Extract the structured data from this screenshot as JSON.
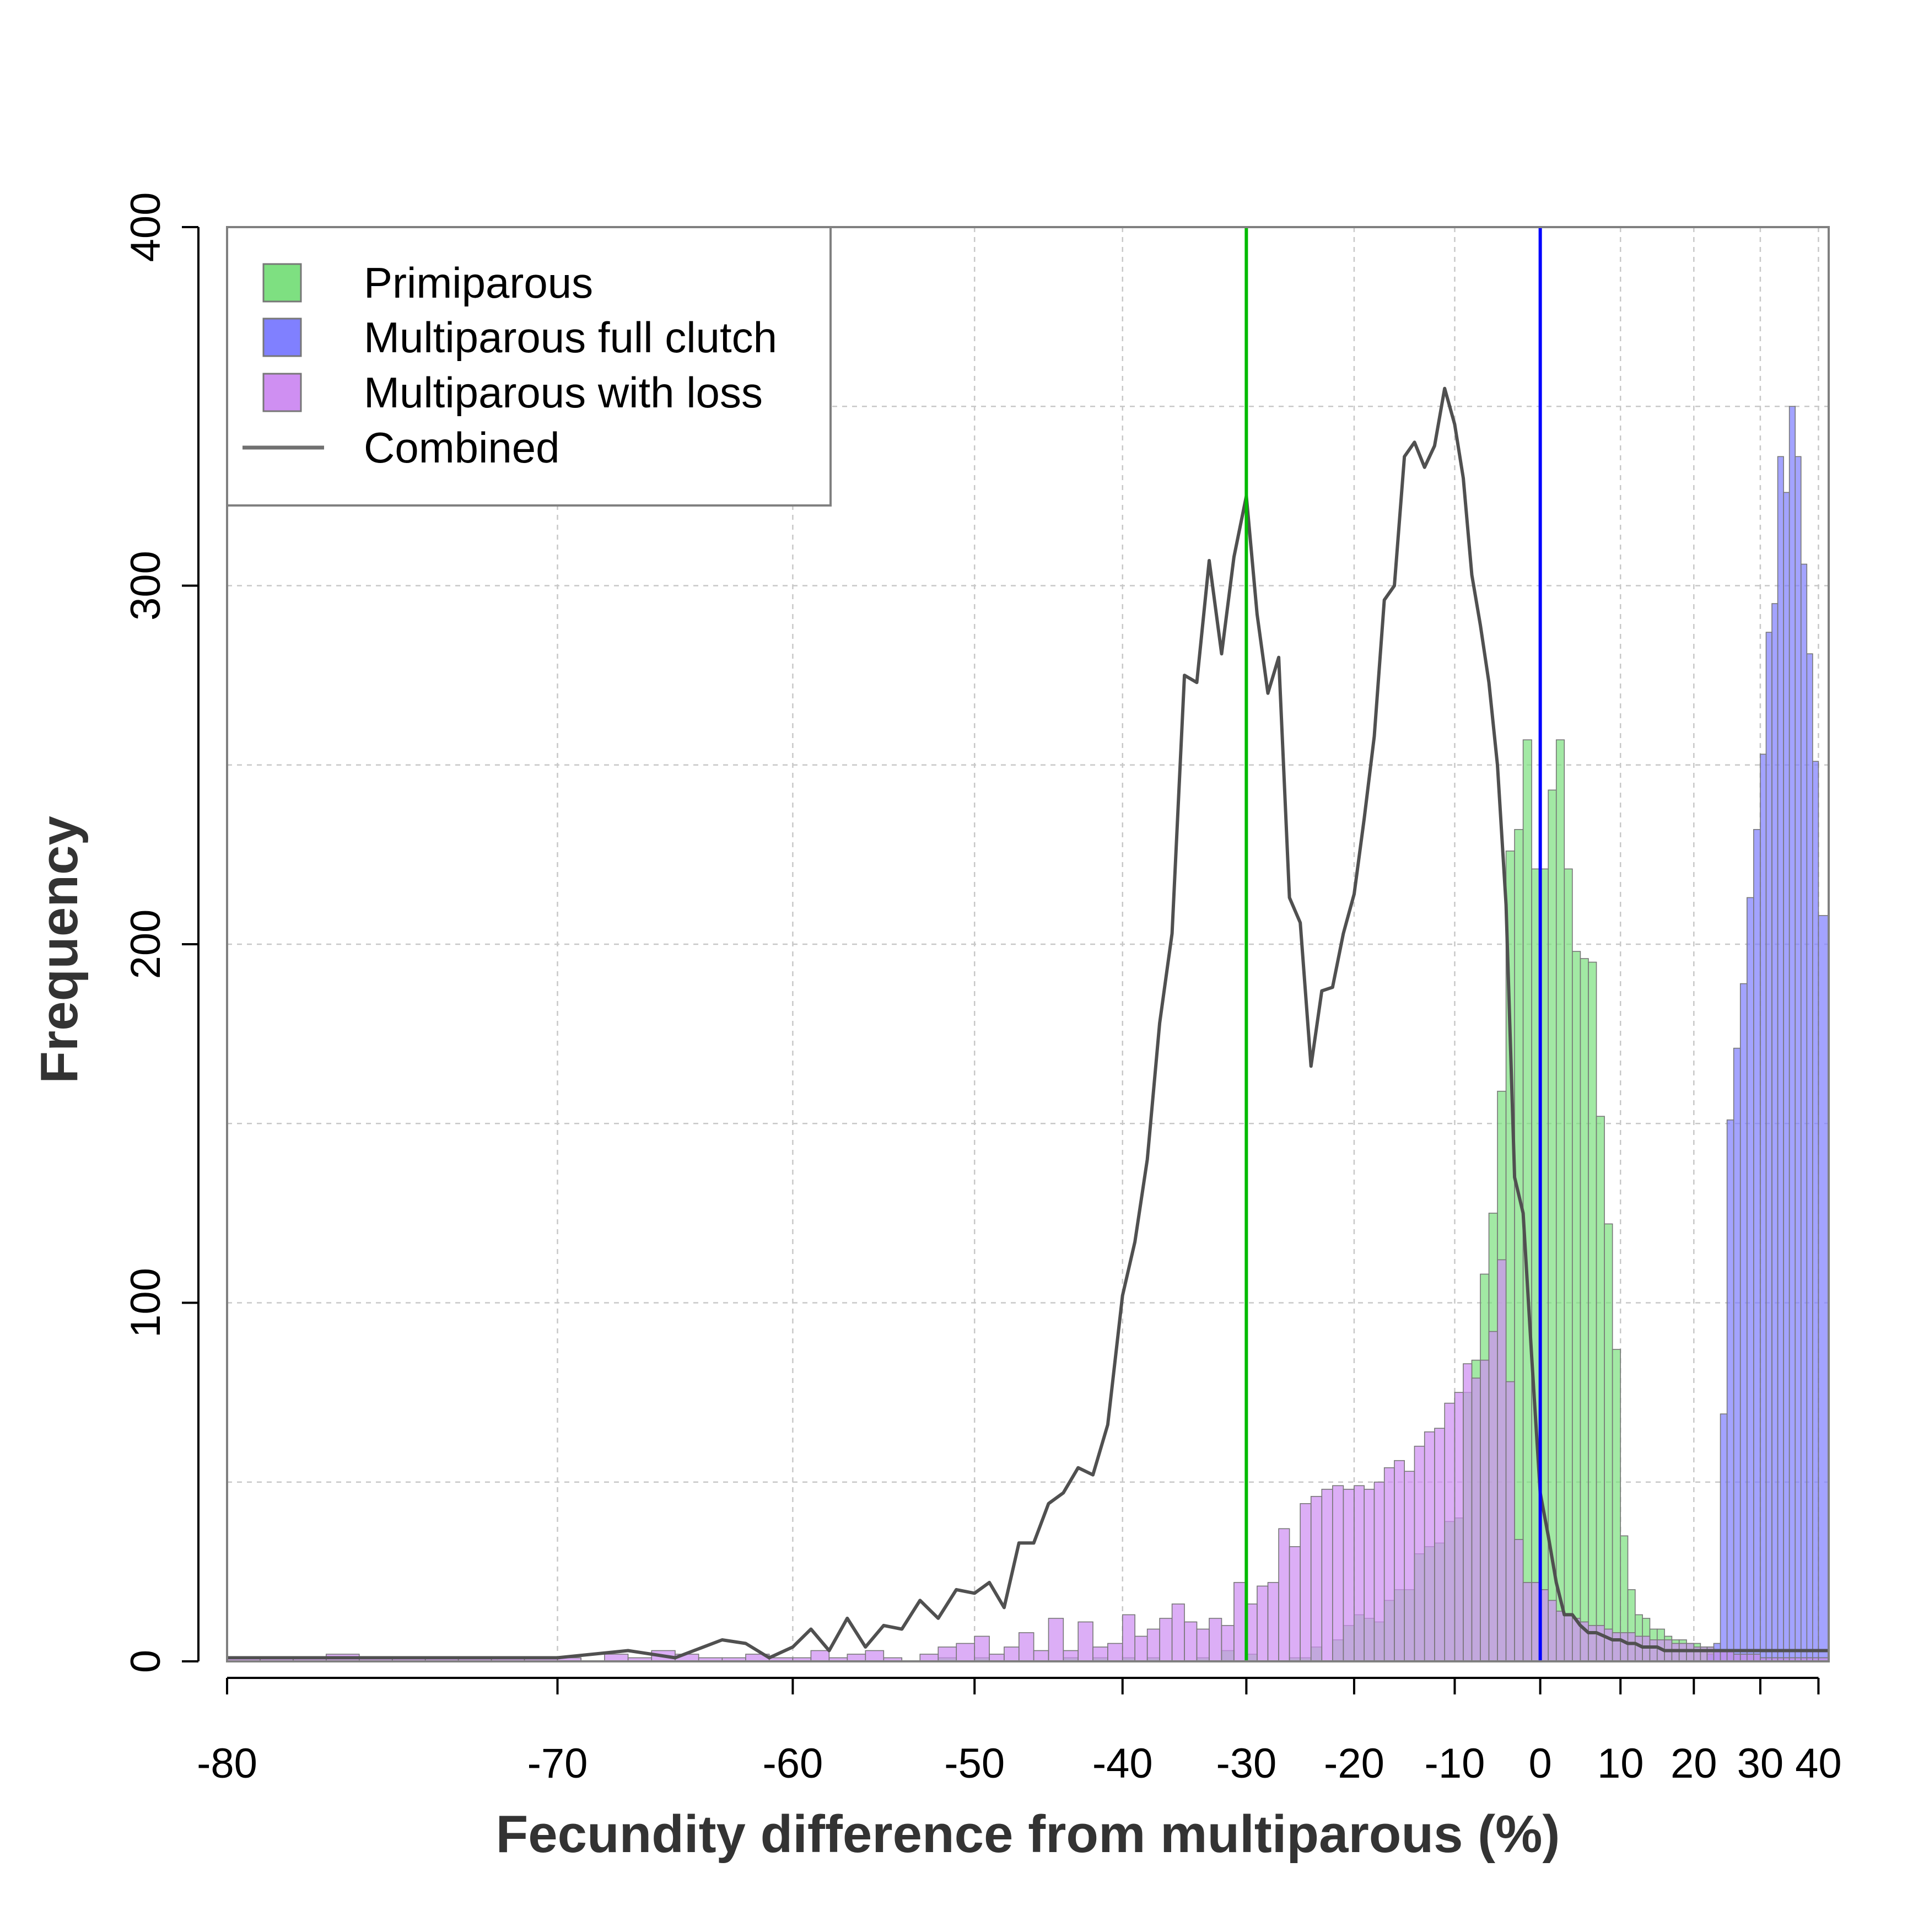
{
  "chart_data": {
    "type": "bar",
    "xlabel": "Fecundity difference from multiparous (%)",
    "ylabel": "Frequency",
    "xlim": [
      -80,
      41
    ],
    "ylim": [
      0,
      400
    ],
    "x_ticks": [
      -80,
      -70,
      -60,
      -50,
      -40,
      -30,
      -20,
      -10,
      0,
      10,
      20,
      30,
      40
    ],
    "y_ticks": [
      0,
      100,
      200,
      300,
      400
    ],
    "grid": true,
    "x_scale": "nonlinear",
    "x_axis_mapping": [
      [
        -80,
        0
      ],
      [
        -70,
        0.2063
      ],
      [
        -60,
        0.3532
      ],
      [
        -50,
        0.4667
      ],
      [
        -40,
        0.5591
      ],
      [
        -30,
        0.6364
      ],
      [
        -20,
        0.7037
      ],
      [
        -10,
        0.7665
      ],
      [
        0,
        0.8199
      ],
      [
        10,
        0.87
      ],
      [
        20,
        0.9158
      ],
      [
        30,
        0.9573
      ],
      [
        40,
        0.9936
      ],
      [
        41,
        1
      ]
    ],
    "legend": {
      "position": "top-left",
      "entries": [
        {
          "label": "Primiparous",
          "type": "box",
          "color": "#7ee081"
        },
        {
          "label": "Multiparous full clutch",
          "type": "box",
          "color": "#8080ff"
        },
        {
          "label": "Multiparous with loss",
          "type": "box",
          "color": "#cf8ff2"
        },
        {
          "label": "Combined",
          "type": "line",
          "color": "#707070"
        }
      ]
    },
    "vlines": [
      {
        "x": -30,
        "color": "#00bb00"
      },
      {
        "x": 0,
        "color": "#0000ff"
      }
    ],
    "bin_edges": [
      -80,
      -79,
      -78,
      -77,
      -76,
      -75,
      -74,
      -73,
      -72,
      -71,
      -70,
      -69,
      -68,
      -67,
      -66,
      -65,
      -64,
      -63,
      -62,
      -61,
      -60,
      -59,
      -58,
      -57,
      -56,
      -55,
      -54,
      -53,
      -52,
      -51,
      -50,
      -49,
      -48,
      -47,
      -46,
      -45,
      -44,
      -43,
      -42,
      -41,
      -40,
      -39,
      -38,
      -37,
      -36,
      -35,
      -34,
      -33,
      -32,
      -31,
      -30,
      -29,
      -28,
      -27,
      -26,
      -25,
      -24,
      -23,
      -22,
      -21,
      -20,
      -19,
      -18,
      -17,
      -16,
      -15,
      -14,
      -13,
      -12,
      -11,
      -10,
      -9,
      -8,
      -7,
      -6,
      -5,
      -4,
      -3,
      -2,
      -1,
      0,
      1,
      2,
      3,
      4,
      5,
      6,
      7,
      8,
      9,
      10,
      11,
      12,
      13,
      14,
      15,
      16,
      17,
      18,
      19,
      20,
      21,
      22,
      23,
      24,
      25,
      26,
      27,
      28,
      29,
      30,
      31,
      32,
      33,
      34,
      35,
      36,
      37,
      38,
      39,
      40,
      41
    ],
    "series": [
      {
        "name": "Primiparous",
        "color": "#7ee081",
        "values": [
          0,
          0,
          0,
          0,
          0,
          0,
          0,
          0,
          0,
          0,
          0,
          0,
          0,
          0,
          0,
          0,
          0,
          0,
          0,
          0,
          0,
          0,
          0,
          0,
          0,
          0,
          0,
          0,
          1,
          0,
          1,
          0,
          0,
          0,
          0,
          0,
          1,
          0,
          1,
          0,
          1,
          0,
          1,
          0,
          0,
          0,
          1,
          0,
          3,
          0,
          2,
          0,
          0,
          0,
          1,
          1,
          4,
          0,
          6,
          10,
          13,
          12,
          11,
          17,
          20,
          20,
          30,
          32,
          33,
          39,
          40,
          75,
          84,
          108,
          125,
          159,
          226,
          232,
          257,
          221,
          221,
          243,
          257,
          221,
          198,
          196,
          195,
          152,
          122,
          87,
          35,
          20,
          13,
          12,
          9,
          9,
          7,
          6,
          6,
          5,
          5,
          4,
          4,
          3,
          3,
          3,
          2,
          2,
          2,
          2,
          1,
          1,
          1,
          1,
          1,
          1,
          1,
          1,
          1,
          1,
          1
        ]
      },
      {
        "name": "Multiparous full clutch",
        "color": "#8080ff",
        "values": [
          0,
          0,
          0,
          0,
          0,
          0,
          0,
          0,
          0,
          0,
          0,
          0,
          0,
          0,
          0,
          0,
          0,
          0,
          0,
          0,
          0,
          0,
          0,
          0,
          0,
          0,
          0,
          0,
          0,
          0,
          0,
          0,
          0,
          0,
          0,
          0,
          0,
          0,
          0,
          0,
          0,
          0,
          0,
          0,
          0,
          0,
          0,
          0,
          0,
          0,
          0,
          0,
          0,
          0,
          0,
          0,
          0,
          0,
          0,
          0,
          0,
          0,
          0,
          0,
          0,
          0,
          0,
          0,
          0,
          0,
          0,
          0,
          0,
          0,
          0,
          0,
          0,
          0,
          0,
          0,
          0,
          0,
          0,
          0,
          0,
          0,
          0,
          0,
          0,
          0,
          0,
          0,
          0,
          0,
          0,
          0,
          0,
          0,
          0,
          0,
          0,
          0,
          2,
          5,
          69,
          151,
          171,
          189,
          213,
          232,
          253,
          287,
          295,
          336,
          326,
          350,
          336,
          306,
          281,
          251,
          208
        ]
      },
      {
        "name": "Multiparous with loss",
        "color": "#cf8ff2",
        "values": [
          1,
          1,
          1,
          2,
          1,
          1,
          1,
          1,
          1,
          1,
          1,
          0,
          2,
          1,
          3,
          2,
          1,
          1,
          2,
          1,
          1,
          3,
          1,
          2,
          3,
          1,
          0,
          2,
          4,
          5,
          7,
          2,
          4,
          8,
          3,
          12,
          3,
          11,
          4,
          5,
          13,
          7,
          9,
          12,
          16,
          11,
          9,
          12,
          10,
          22,
          16,
          21,
          22,
          37,
          32,
          44,
          46,
          48,
          49,
          48,
          49,
          48,
          50,
          54,
          56,
          53,
          60,
          64,
          65,
          72,
          75,
          83,
          79,
          84,
          92,
          112,
          78,
          34,
          22,
          22,
          20,
          17,
          14,
          13,
          12,
          11,
          10,
          10,
          9,
          8,
          8,
          8,
          7,
          7,
          6,
          6,
          6,
          5,
          5,
          5,
          4,
          4,
          4,
          3,
          3,
          3,
          2,
          2,
          2,
          2,
          1,
          1,
          1,
          1,
          1,
          1,
          1,
          1,
          1,
          1,
          1
        ]
      }
    ],
    "combined_line": {
      "name": "Combined",
      "color": "#505050",
      "x": [
        -80,
        -75,
        -70,
        -67,
        -65,
        -63,
        -62,
        -61,
        -60,
        -59,
        -58,
        -57,
        -56,
        -55,
        -54,
        -53,
        -52,
        -51,
        -50,
        -49,
        -48,
        -47,
        -46,
        -45,
        -44,
        -43,
        -42,
        -41,
        -40,
        -39,
        -38,
        -37,
        -36,
        -35,
        -34,
        -33,
        -32,
        -31,
        -30,
        -29,
        -28,
        -27,
        -26,
        -25,
        -24,
        -23,
        -22,
        -21,
        -20,
        -19,
        -18,
        -17,
        -16,
        -15,
        -14,
        -13,
        -12,
        -11,
        -10,
        -9,
        -8,
        -7,
        -6,
        -5,
        -4,
        -3,
        -2,
        -1,
        0,
        1,
        2,
        3,
        4,
        5,
        6,
        7,
        8,
        9,
        10,
        11,
        12,
        13,
        14,
        15,
        16,
        17,
        18,
        19,
        20,
        22,
        24,
        26,
        28,
        30,
        32,
        34,
        36,
        38,
        40,
        41
      ],
      "y": [
        1,
        1,
        1,
        3,
        1,
        6,
        5,
        1,
        4,
        9,
        3,
        12,
        4,
        10,
        9,
        17,
        12,
        20,
        19,
        22,
        15,
        33,
        33,
        44,
        47,
        54,
        52,
        66,
        102,
        117,
        140,
        178,
        203,
        275,
        273,
        307,
        281,
        308,
        325,
        292,
        270,
        280,
        213,
        206,
        166,
        187,
        188,
        203,
        214,
        235,
        258,
        296,
        300,
        336,
        340,
        333,
        339,
        355,
        345,
        330,
        303,
        289,
        273,
        250,
        211,
        135,
        125,
        85,
        47,
        35,
        22,
        13,
        13,
        10,
        8,
        8,
        7,
        6,
        6,
        5,
        5,
        4,
        4,
        4,
        3,
        3,
        3,
        3,
        3,
        3,
        3,
        3,
        3,
        3,
        3,
        3,
        3,
        3,
        3,
        3
      ]
    }
  }
}
